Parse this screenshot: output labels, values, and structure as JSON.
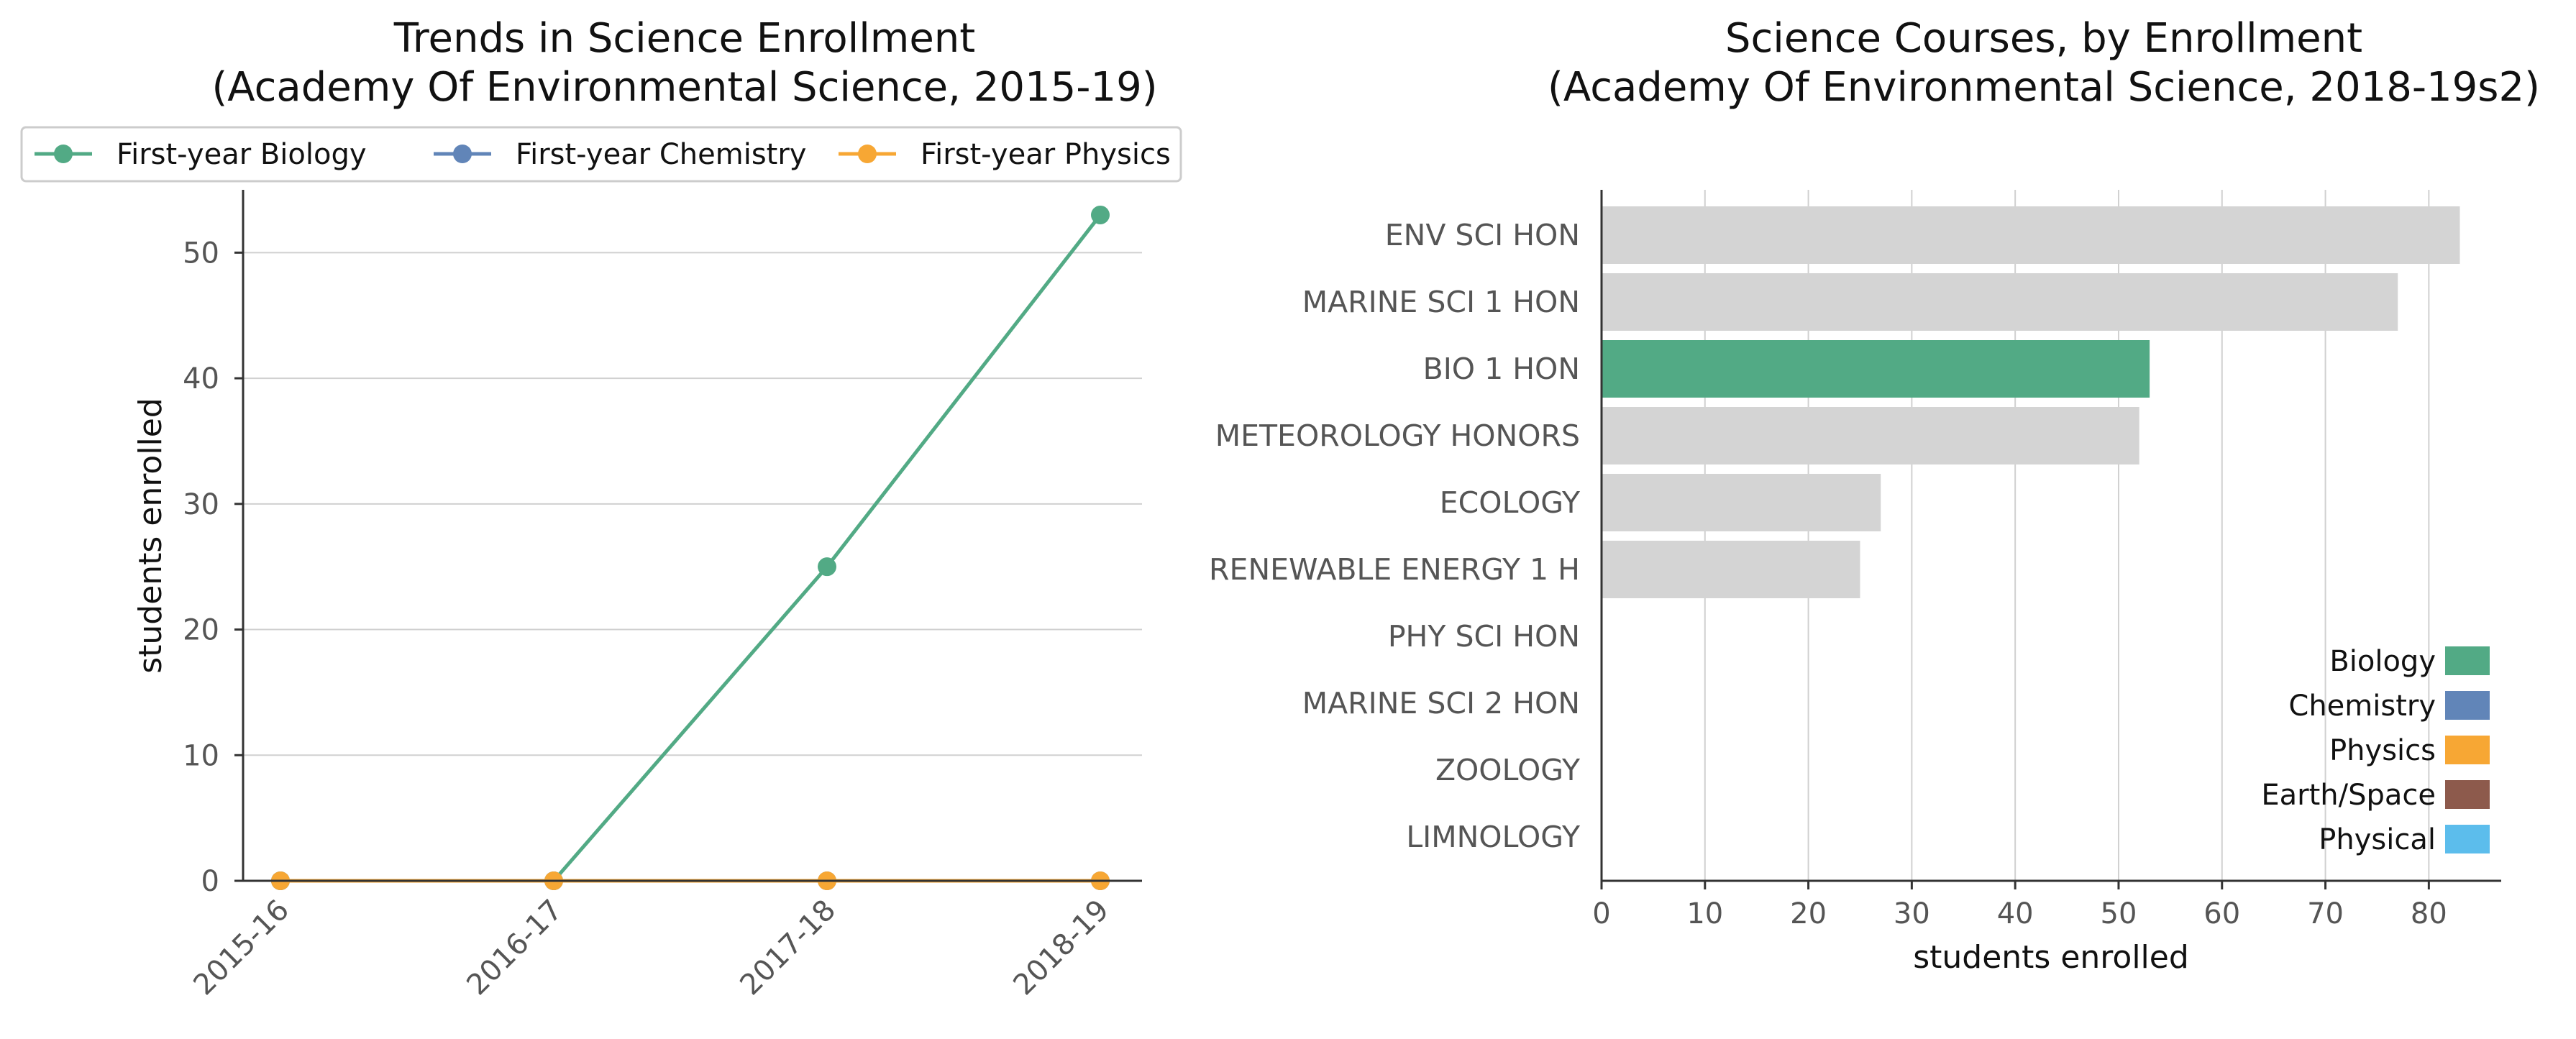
{
  "colors": {
    "biology": "#52aa85",
    "chemistry": "#6185b8",
    "physics": "#f7a734",
    "earth_space": "#8d5a4c",
    "physical": "#5cbdec",
    "neutral_bar": "#d4d4d4",
    "grid": "#d0d0d0",
    "axis": "#333333"
  },
  "chart_data": [
    {
      "type": "line",
      "title": "Trends in Science Enrollment",
      "subtitle": "(Academy Of Environmental Science, 2015-19)",
      "xlabel": "",
      "ylabel": "students enrolled",
      "x": [
        "2015-16",
        "2016-17",
        "2017-18",
        "2018-19"
      ],
      "ylim": [
        0,
        55
      ],
      "yticks": [
        0,
        10,
        20,
        30,
        40,
        50
      ],
      "grid": "horizontal",
      "legend": "top",
      "series": [
        {
          "name": "First-year Biology",
          "color_key": "biology",
          "values": [
            0,
            0,
            25,
            53
          ]
        },
        {
          "name": "First-year Chemistry",
          "color_key": "chemistry",
          "values": [
            0,
            0,
            0,
            0
          ]
        },
        {
          "name": "First-year Physics",
          "color_key": "physics",
          "values": [
            0,
            0,
            0,
            0
          ]
        }
      ]
    },
    {
      "type": "bar",
      "orientation": "horizontal",
      "title": "Science Courses, by Enrollment",
      "subtitle": "(Academy Of Environmental Science, 2018-19s2)",
      "xlabel": "students enrolled",
      "ylabel": "",
      "xlim": [
        0,
        87
      ],
      "xticks": [
        0,
        10,
        20,
        30,
        40,
        50,
        60,
        70,
        80
      ],
      "grid": "vertical",
      "legend": "bottom-right",
      "categories": [
        "ENV SCI HON",
        "MARINE SCI 1 HON",
        "BIO 1 HON",
        "METEOROLOGY HONORS",
        "ECOLOGY",
        "RENEWABLE ENERGY 1 H",
        "PHY SCI HON",
        "MARINE SCI 2 HON",
        "ZOOLOGY",
        "LIMNOLOGY"
      ],
      "values": [
        83,
        77,
        53,
        52,
        27,
        25,
        0,
        0,
        0,
        0
      ],
      "bar_color_keys": [
        "neutral_bar",
        "neutral_bar",
        "biology",
        "neutral_bar",
        "neutral_bar",
        "neutral_bar",
        "neutral_bar",
        "neutral_bar",
        "neutral_bar",
        "neutral_bar"
      ],
      "legend_entries": [
        {
          "label": "Biology",
          "color_key": "biology"
        },
        {
          "label": "Chemistry",
          "color_key": "chemistry"
        },
        {
          "label": "Physics",
          "color_key": "physics"
        },
        {
          "label": "Earth/Space",
          "color_key": "earth_space"
        },
        {
          "label": "Physical",
          "color_key": "physical"
        }
      ]
    }
  ]
}
